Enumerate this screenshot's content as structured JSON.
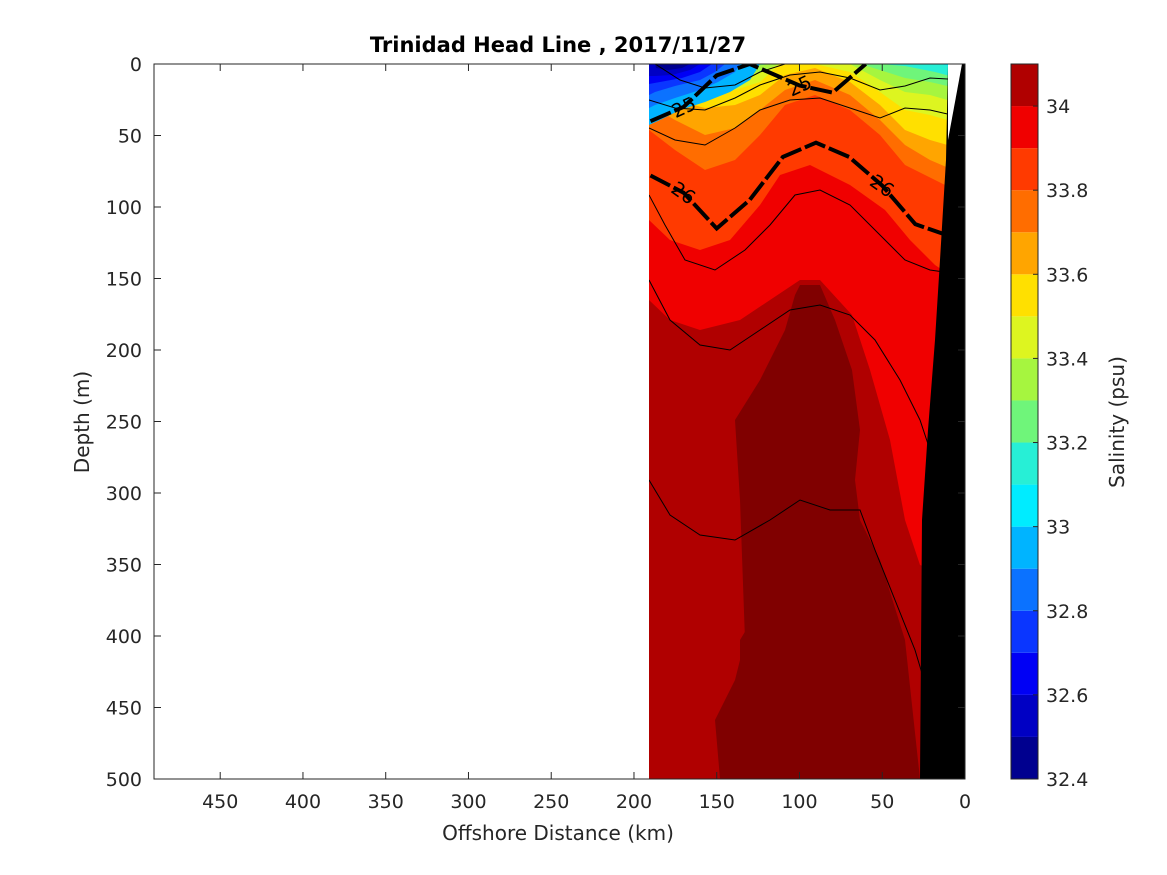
{
  "chart_data": {
    "type": "heatmap",
    "title": "Trinidad Head Line , 2017/11/27",
    "xlabel": "Offshore Distance (km)",
    "ylabel": "Depth (m)",
    "colorbar_label": "Salinity (psu)",
    "xlim": [
      490,
      0
    ],
    "ylim": [
      0,
      500
    ],
    "x_ticks": [
      "450",
      "400",
      "350",
      "300",
      "250",
      "200",
      "150",
      "100",
      "50",
      "0"
    ],
    "y_ticks": [
      "0",
      "50",
      "100",
      "150",
      "200",
      "250",
      "300",
      "350",
      "400",
      "450",
      "500"
    ],
    "colorbar_ticks": [
      "34",
      "33.8",
      "33.6",
      "33.4",
      "33.2",
      "33",
      "32.8",
      "32.6",
      "32.4"
    ],
    "colorbar_range": [
      32.4,
      34.1
    ],
    "colorbar_levels": [
      {
        "from": 32.4,
        "to": 32.5,
        "color": "#00008f"
      },
      {
        "from": 32.5,
        "to": 32.6,
        "color": "#0000c4"
      },
      {
        "from": 32.6,
        "to": 32.7,
        "color": "#0000f5"
      },
      {
        "from": 32.7,
        "to": 32.8,
        "color": "#0a36ff"
      },
      {
        "from": 32.8,
        "to": 32.9,
        "color": "#0b72ff"
      },
      {
        "from": 32.9,
        "to": 33.0,
        "color": "#00b4ff"
      },
      {
        "from": 33.0,
        "to": 33.1,
        "color": "#00ecff"
      },
      {
        "from": 33.1,
        "to": 33.2,
        "color": "#27efd6"
      },
      {
        "from": 33.2,
        "to": 33.3,
        "color": "#6ff57a"
      },
      {
        "from": 33.3,
        "to": 33.4,
        "color": "#a6f53f"
      },
      {
        "from": 33.4,
        "to": 33.5,
        "color": "#ddf520"
      },
      {
        "from": 33.5,
        "to": 33.6,
        "color": "#ffe000"
      },
      {
        "from": 33.6,
        "to": 33.7,
        "color": "#ffa500"
      },
      {
        "from": 33.7,
        "to": 33.8,
        "color": "#ff6d00"
      },
      {
        "from": 33.8,
        "to": 33.9,
        "color": "#ff3a00"
      },
      {
        "from": 33.9,
        "to": 34.0,
        "color": "#f00000"
      },
      {
        "from": 34.0,
        "to": 34.1,
        "color": "#b00000"
      }
    ],
    "deep_color": "#800000",
    "land_color": "#000000",
    "data_extent_km": [
      190,
      0
    ],
    "density_contours": [
      {
        "label": "25",
        "depth_profile": [
          {
            "x": 190,
            "depth": 40
          },
          {
            "x": 170,
            "depth": 30
          },
          {
            "x": 150,
            "depth": 8
          },
          {
            "x": 130,
            "depth": 0
          },
          {
            "x": 100,
            "depth": 15
          },
          {
            "x": 80,
            "depth": 20
          },
          {
            "x": 60,
            "depth": 0
          }
        ]
      },
      {
        "label": "26",
        "depth_profile": [
          {
            "x": 190,
            "depth": 78
          },
          {
            "x": 170,
            "depth": 90
          },
          {
            "x": 150,
            "depth": 115
          },
          {
            "x": 130,
            "depth": 95
          },
          {
            "x": 110,
            "depth": 65
          },
          {
            "x": 90,
            "depth": 55
          },
          {
            "x": 70,
            "depth": 65
          },
          {
            "x": 50,
            "depth": 85
          },
          {
            "x": 30,
            "depth": 112
          },
          {
            "x": 10,
            "depth": 120
          }
        ]
      }
    ]
  }
}
